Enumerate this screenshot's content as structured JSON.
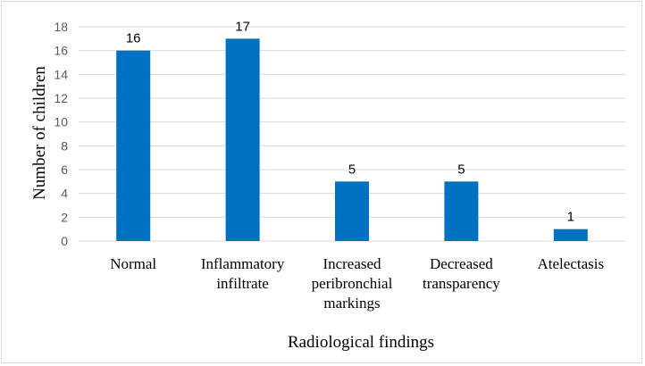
{
  "chart_data": {
    "type": "bar",
    "categories": [
      [
        "Normal"
      ],
      [
        "Inflammatory",
        "infiltrate"
      ],
      [
        "Increased",
        "peribronchial",
        "markings"
      ],
      [
        "Decreased",
        "transparency"
      ],
      [
        "Atelectasis"
      ]
    ],
    "values": [
      16,
      17,
      5,
      5,
      1
    ],
    "data_labels": [
      "16",
      "17",
      "5",
      "5",
      "1"
    ],
    "title": "",
    "xlabel": "Radiological findings",
    "ylabel": "Number of children",
    "ylim": [
      0,
      18
    ],
    "yticks": [
      "0",
      "2",
      "4",
      "6",
      "8",
      "10",
      "12",
      "14",
      "16",
      "18"
    ],
    "grid": true,
    "legend": "none",
    "colors": {
      "bar": "#0070C0",
      "grid": "#d9d9d9",
      "axis": "#d9d9d9"
    }
  }
}
